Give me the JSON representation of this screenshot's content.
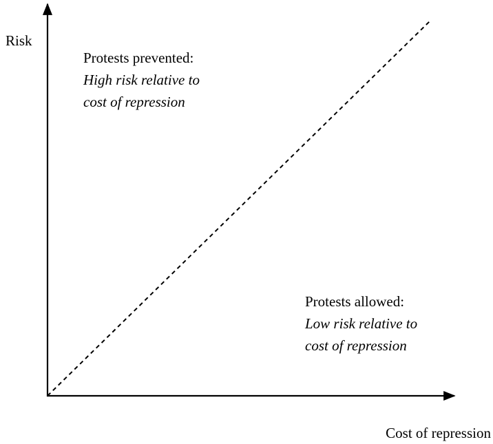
{
  "axes": {
    "y_label": "Risk",
    "x_label": "Cost of repression"
  },
  "regions": [
    {
      "title": "Protests prevented:",
      "description": [
        "High risk relative to",
        "cost of repression"
      ]
    },
    {
      "title": "Protests allowed:",
      "description": [
        "Low risk relative to",
        "cost of repression"
      ]
    }
  ]
}
